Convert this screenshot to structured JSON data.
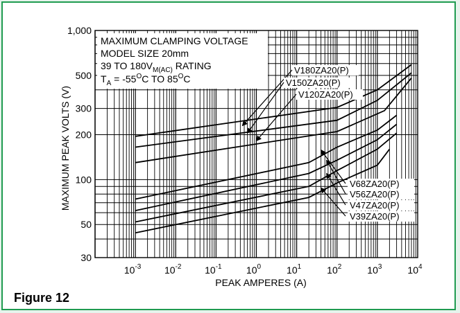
{
  "figure_label": "Figure 12",
  "chart_data": {
    "type": "line",
    "xscale": "log",
    "yscale": "log",
    "xlim": [
      0.0001,
      10000
    ],
    "ylim": [
      30,
      1000
    ],
    "xlabel": "PEAK AMPERES (A)",
    "ylabel": "MAXIMUM PEAK VOLTS (V)",
    "x_ticks": [
      {
        "value": 0.001,
        "mant": "10",
        "exp": "-3"
      },
      {
        "value": 0.01,
        "mant": "10",
        "exp": "-2"
      },
      {
        "value": 0.1,
        "mant": "10",
        "exp": "-1"
      },
      {
        "value": 1,
        "mant": "10",
        "exp": "0"
      },
      {
        "value": 10,
        "mant": "10",
        "exp": "1"
      },
      {
        "value": 100,
        "mant": "10",
        "exp": "2"
      },
      {
        "value": 1000,
        "mant": "10",
        "exp": "3"
      },
      {
        "value": 10000,
        "mant": "10",
        "exp": "4"
      }
    ],
    "y_ticks": [
      {
        "value": 30,
        "label": "30"
      },
      {
        "value": 50,
        "label": "50"
      },
      {
        "value": 100,
        "label": "100"
      },
      {
        "value": 200,
        "label": "200"
      },
      {
        "value": 300,
        "label": "300"
      },
      {
        "value": 500,
        "label": "500"
      },
      {
        "value": 1000,
        "label": "1,000"
      }
    ],
    "info_box": {
      "line1": "MAXIMUM CLAMPING VOLTAGE",
      "line2": "MODEL SIZE 20mm",
      "line3_prefix": "39 TO 180V",
      "line3_sub": "M(AC)",
      "line3_suffix": " RATING",
      "line4_t": "T",
      "line4_t_sub": "A",
      "line4_range_a": " = -55",
      "line4_deg": "O",
      "line4_range_b": "C TO 85",
      "line4_deg2": "O",
      "line4_range_c": "C"
    },
    "series": [
      {
        "name": "V180ZA20(P)",
        "x": [
          0.001,
          100,
          1000,
          7000
        ],
        "y": [
          195,
          305,
          400,
          590
        ]
      },
      {
        "name": "V150ZA20(P)",
        "x": [
          0.001,
          100,
          1000,
          7000
        ],
        "y": [
          165,
          250,
          340,
          520
        ]
      },
      {
        "name": "V120ZA20(P)",
        "x": [
          0.001,
          100,
          1500,
          7000
        ],
        "y": [
          130,
          210,
          290,
          480
        ]
      },
      {
        "name": "V68ZA20(P)",
        "x": [
          0.001,
          20,
          100,
          1000,
          3000
        ],
        "y": [
          74,
          130,
          165,
          215,
          270
        ]
      },
      {
        "name": "V56ZA20(P)",
        "x": [
          0.001,
          20,
          100,
          1000,
          3000
        ],
        "y": [
          62,
          110,
          135,
          185,
          235
        ]
      },
      {
        "name": "V47ZA20(P)",
        "x": [
          0.001,
          20,
          100,
          1000,
          3000
        ],
        "y": [
          52,
          90,
          115,
          160,
          205
        ]
      },
      {
        "name": "V39ZA20(P)",
        "x": [
          0.001,
          20,
          100,
          1000,
          2000
        ],
        "y": [
          44,
          76,
          95,
          125,
          160
        ]
      }
    ],
    "annotations": [
      {
        "series": "V180ZA20(P)",
        "label": "V180ZA20(P)",
        "arrow_to": {
          "x": 0.45,
          "y": 230
        }
      },
      {
        "series": "V150ZA20(P)",
        "label": "V150ZA20(P)",
        "arrow_to": {
          "x": 0.6,
          "y": 205
        }
      },
      {
        "series": "V120ZA20(P)",
        "label": "V120ZA20(P)",
        "arrow_to": {
          "x": 1.0,
          "y": 182
        }
      },
      {
        "series": "V68ZA20(P)",
        "label": "V68ZA20(P)",
        "arrow_to": {
          "x": 40,
          "y": 158
        }
      },
      {
        "series": "V56ZA20(P)",
        "label": "V56ZA20(P)",
        "arrow_to": {
          "x": 55,
          "y": 135
        }
      },
      {
        "series": "V47ZA20(P)",
        "label": "V47ZA20(P)",
        "arrow_to": {
          "x": 55,
          "y": 110
        }
      },
      {
        "series": "V39ZA20(P)",
        "label": "V39ZA20(P)",
        "arrow_to": {
          "x": 40,
          "y": 88
        }
      }
    ],
    "grid": "log-minor"
  }
}
